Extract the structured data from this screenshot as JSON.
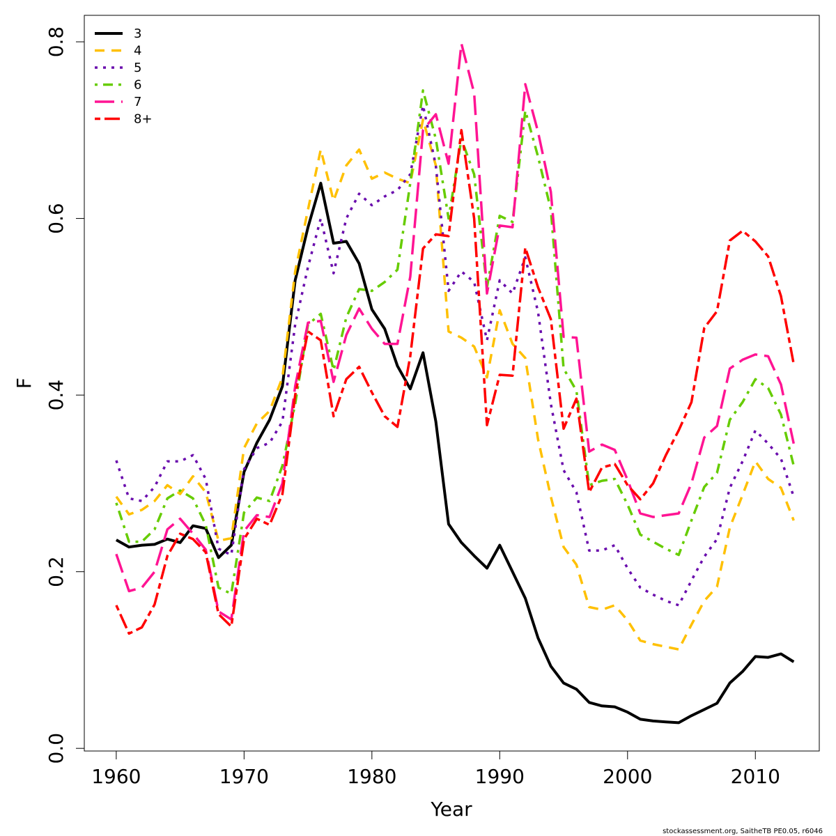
{
  "chart_data": {
    "type": "line",
    "xlabel": "Year",
    "ylabel": "F",
    "xlim": [
      1957.5,
      2015
    ],
    "ylim": [
      -0.003,
      0.83
    ],
    "x_ticks": [
      "1960",
      "1970",
      "1980",
      "1990",
      "2000",
      "2010"
    ],
    "y_ticks": [
      "0.0",
      "0.2",
      "0.4",
      "0.6",
      "0.8"
    ],
    "legend_position": "top-left",
    "footer": "stockassessment.org, SaitheTB  PE0.05, r6046",
    "years": [
      1960,
      1961,
      1962,
      1963,
      1964,
      1965,
      1966,
      1967,
      1968,
      1969,
      1970,
      1971,
      1972,
      1973,
      1974,
      1975,
      1976,
      1977,
      1978,
      1979,
      1980,
      1981,
      1982,
      1983,
      1984,
      1985,
      1986,
      1987,
      1988,
      1989,
      1990,
      1991,
      1992,
      1993,
      1994,
      1995,
      1996,
      1997,
      1998,
      1999,
      2000,
      2001,
      2002,
      2003,
      2004,
      2005,
      2006,
      2007,
      2008,
      2009,
      2010,
      2011,
      2012,
      2013
    ],
    "series": [
      {
        "name": "3",
        "color": "#000000",
        "dash": "solid",
        "width": 4,
        "values": [
          0.236,
          0.228,
          0.23,
          0.231,
          0.237,
          0.233,
          0.252,
          0.249,
          0.216,
          0.23,
          0.313,
          0.346,
          0.372,
          0.41,
          0.53,
          0.59,
          0.64,
          0.572,
          0.574,
          0.549,
          0.497,
          0.475,
          0.433,
          0.407,
          0.448,
          0.37,
          0.254,
          0.233,
          0.218,
          0.204,
          0.23,
          0.2,
          0.17,
          0.125,
          0.093,
          0.074,
          0.067,
          0.052,
          0.048,
          0.047,
          0.041,
          0.033,
          0.031,
          0.03,
          0.029,
          0.037,
          0.044,
          0.051,
          0.074,
          0.087,
          0.104,
          0.103,
          0.107,
          0.098
        ]
      },
      {
        "name": "4",
        "color": "#FFC000",
        "dash": "dashed",
        "width": 3.5,
        "values": [
          0.285,
          0.265,
          0.27,
          0.28,
          0.298,
          0.288,
          0.308,
          0.29,
          0.235,
          0.238,
          0.34,
          0.368,
          0.382,
          0.42,
          0.54,
          0.61,
          0.678,
          0.62,
          0.66,
          0.678,
          0.645,
          0.652,
          0.645,
          0.64,
          0.712,
          0.66,
          0.472,
          0.465,
          0.455,
          0.42,
          0.496,
          0.458,
          0.442,
          0.35,
          0.285,
          0.228,
          0.208,
          0.16,
          0.157,
          0.162,
          0.145,
          0.122,
          0.118,
          0.115,
          0.112,
          0.14,
          0.167,
          0.183,
          0.25,
          0.287,
          0.325,
          0.305,
          0.295,
          0.258
        ]
      },
      {
        "name": "5",
        "color": "#6A0DAD",
        "dash": "dotted",
        "width": 3.5,
        "values": [
          0.326,
          0.283,
          0.28,
          0.296,
          0.325,
          0.325,
          0.332,
          0.305,
          0.226,
          0.219,
          0.316,
          0.34,
          0.346,
          0.37,
          0.48,
          0.545,
          0.6,
          0.538,
          0.6,
          0.628,
          0.615,
          0.625,
          0.632,
          0.65,
          0.728,
          0.66,
          0.518,
          0.54,
          0.528,
          0.462,
          0.53,
          0.515,
          0.556,
          0.494,
          0.39,
          0.315,
          0.29,
          0.224,
          0.224,
          0.23,
          0.204,
          0.182,
          0.174,
          0.167,
          0.162,
          0.19,
          0.217,
          0.237,
          0.295,
          0.325,
          0.36,
          0.345,
          0.328,
          0.285
        ]
      },
      {
        "name": "6",
        "color": "#66CC00",
        "dash": "dotdash",
        "width": 3.5,
        "values": [
          0.278,
          0.234,
          0.234,
          0.248,
          0.283,
          0.292,
          0.283,
          0.253,
          0.182,
          0.175,
          0.267,
          0.284,
          0.28,
          0.32,
          0.39,
          0.48,
          0.492,
          0.428,
          0.488,
          0.52,
          0.518,
          0.528,
          0.542,
          0.64,
          0.745,
          0.69,
          0.6,
          0.69,
          0.65,
          0.522,
          0.603,
          0.596,
          0.722,
          0.67,
          0.61,
          0.43,
          0.405,
          0.298,
          0.303,
          0.305,
          0.276,
          0.242,
          0.234,
          0.226,
          0.219,
          0.258,
          0.296,
          0.312,
          0.372,
          0.392,
          0.418,
          0.408,
          0.378,
          0.32
        ]
      },
      {
        "name": "7",
        "color": "#FF1493",
        "dash": "longdash",
        "width": 3.5,
        "values": [
          0.22,
          0.178,
          0.182,
          0.2,
          0.248,
          0.26,
          0.243,
          0.225,
          0.155,
          0.146,
          0.246,
          0.264,
          0.262,
          0.3,
          0.41,
          0.482,
          0.484,
          0.415,
          0.468,
          0.498,
          0.475,
          0.458,
          0.458,
          0.534,
          0.7,
          0.718,
          0.662,
          0.798,
          0.742,
          0.515,
          0.592,
          0.59,
          0.752,
          0.698,
          0.63,
          0.466,
          0.465,
          0.336,
          0.344,
          0.338,
          0.304,
          0.266,
          0.262,
          0.264,
          0.266,
          0.3,
          0.352,
          0.365,
          0.43,
          0.44,
          0.446,
          0.444,
          0.412,
          0.345
        ]
      },
      {
        "name": "8+",
        "color": "#FF0000",
        "dash": "twodash",
        "width": 3.5,
        "values": [
          0.162,
          0.13,
          0.137,
          0.163,
          0.218,
          0.243,
          0.237,
          0.222,
          0.152,
          0.138,
          0.237,
          0.26,
          0.253,
          0.288,
          0.4,
          0.472,
          0.462,
          0.376,
          0.418,
          0.432,
          0.403,
          0.376,
          0.364,
          0.444,
          0.566,
          0.582,
          0.58,
          0.7,
          0.6,
          0.366,
          0.423,
          0.422,
          0.567,
          0.522,
          0.486,
          0.362,
          0.396,
          0.29,
          0.318,
          0.322,
          0.298,
          0.282,
          0.3,
          0.332,
          0.36,
          0.392,
          0.476,
          0.495,
          0.575,
          0.586,
          0.574,
          0.557,
          0.512,
          0.435
        ]
      }
    ]
  }
}
